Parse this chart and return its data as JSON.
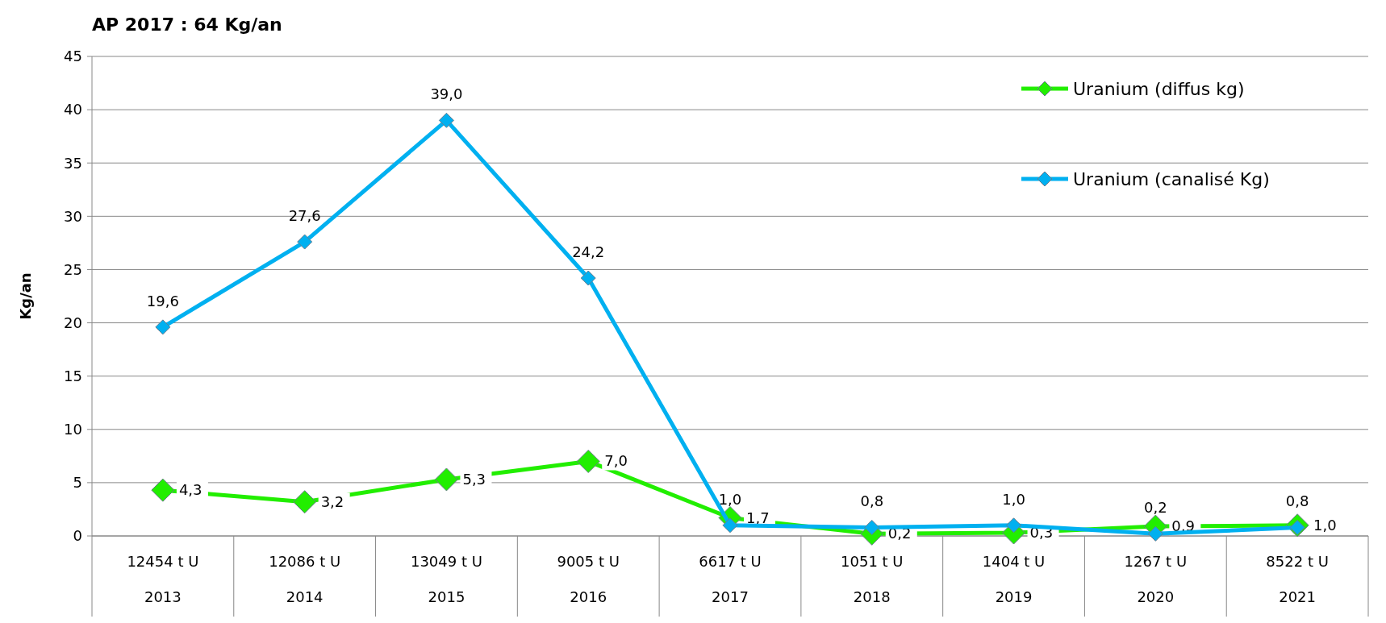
{
  "chart_data": {
    "type": "line",
    "title": "AP 2017 : 64 Kg/an",
    "ylabel": "Kg/an",
    "categories": [
      "12454 t U\n2013",
      "12086 t U\n2014",
      "13049 t U\n2015",
      "9005 t U\n2016",
      "6617 t U\n2017",
      "1051 t U\n2018",
      "1404 t U\n2019",
      "1267 t U\n2020",
      "8522 t U\n2021"
    ],
    "series": [
      {
        "name": "Uranium (diffus kg)",
        "color": "#22ee00",
        "values": [
          4.3,
          3.2,
          5.3,
          7.0,
          1.7,
          0.2,
          0.3,
          0.9,
          1.0
        ],
        "value_labels": [
          "4,3",
          "3,2",
          "5,3",
          "7,0",
          "1,7",
          "0,2",
          "0,3",
          "0,9",
          "1,0"
        ]
      },
      {
        "name": "Uranium (canalisé Kg)",
        "color": "#00b0f0",
        "values": [
          19.6,
          27.6,
          39.0,
          24.2,
          1.0,
          0.8,
          1.0,
          0.2,
          0.8
        ],
        "value_labels": [
          "19,6",
          "27,6",
          "39,0",
          "24,2",
          "1,0",
          "0,8",
          "1,0",
          "0,2",
          "0,8"
        ]
      }
    ],
    "ylim": [
      0,
      45
    ],
    "yticks": [
      0,
      5,
      10,
      15,
      20,
      25,
      30,
      35,
      40,
      45
    ],
    "grid": "y",
    "legend": "top right",
    "marker": "diamond",
    "line_style": "solid"
  }
}
